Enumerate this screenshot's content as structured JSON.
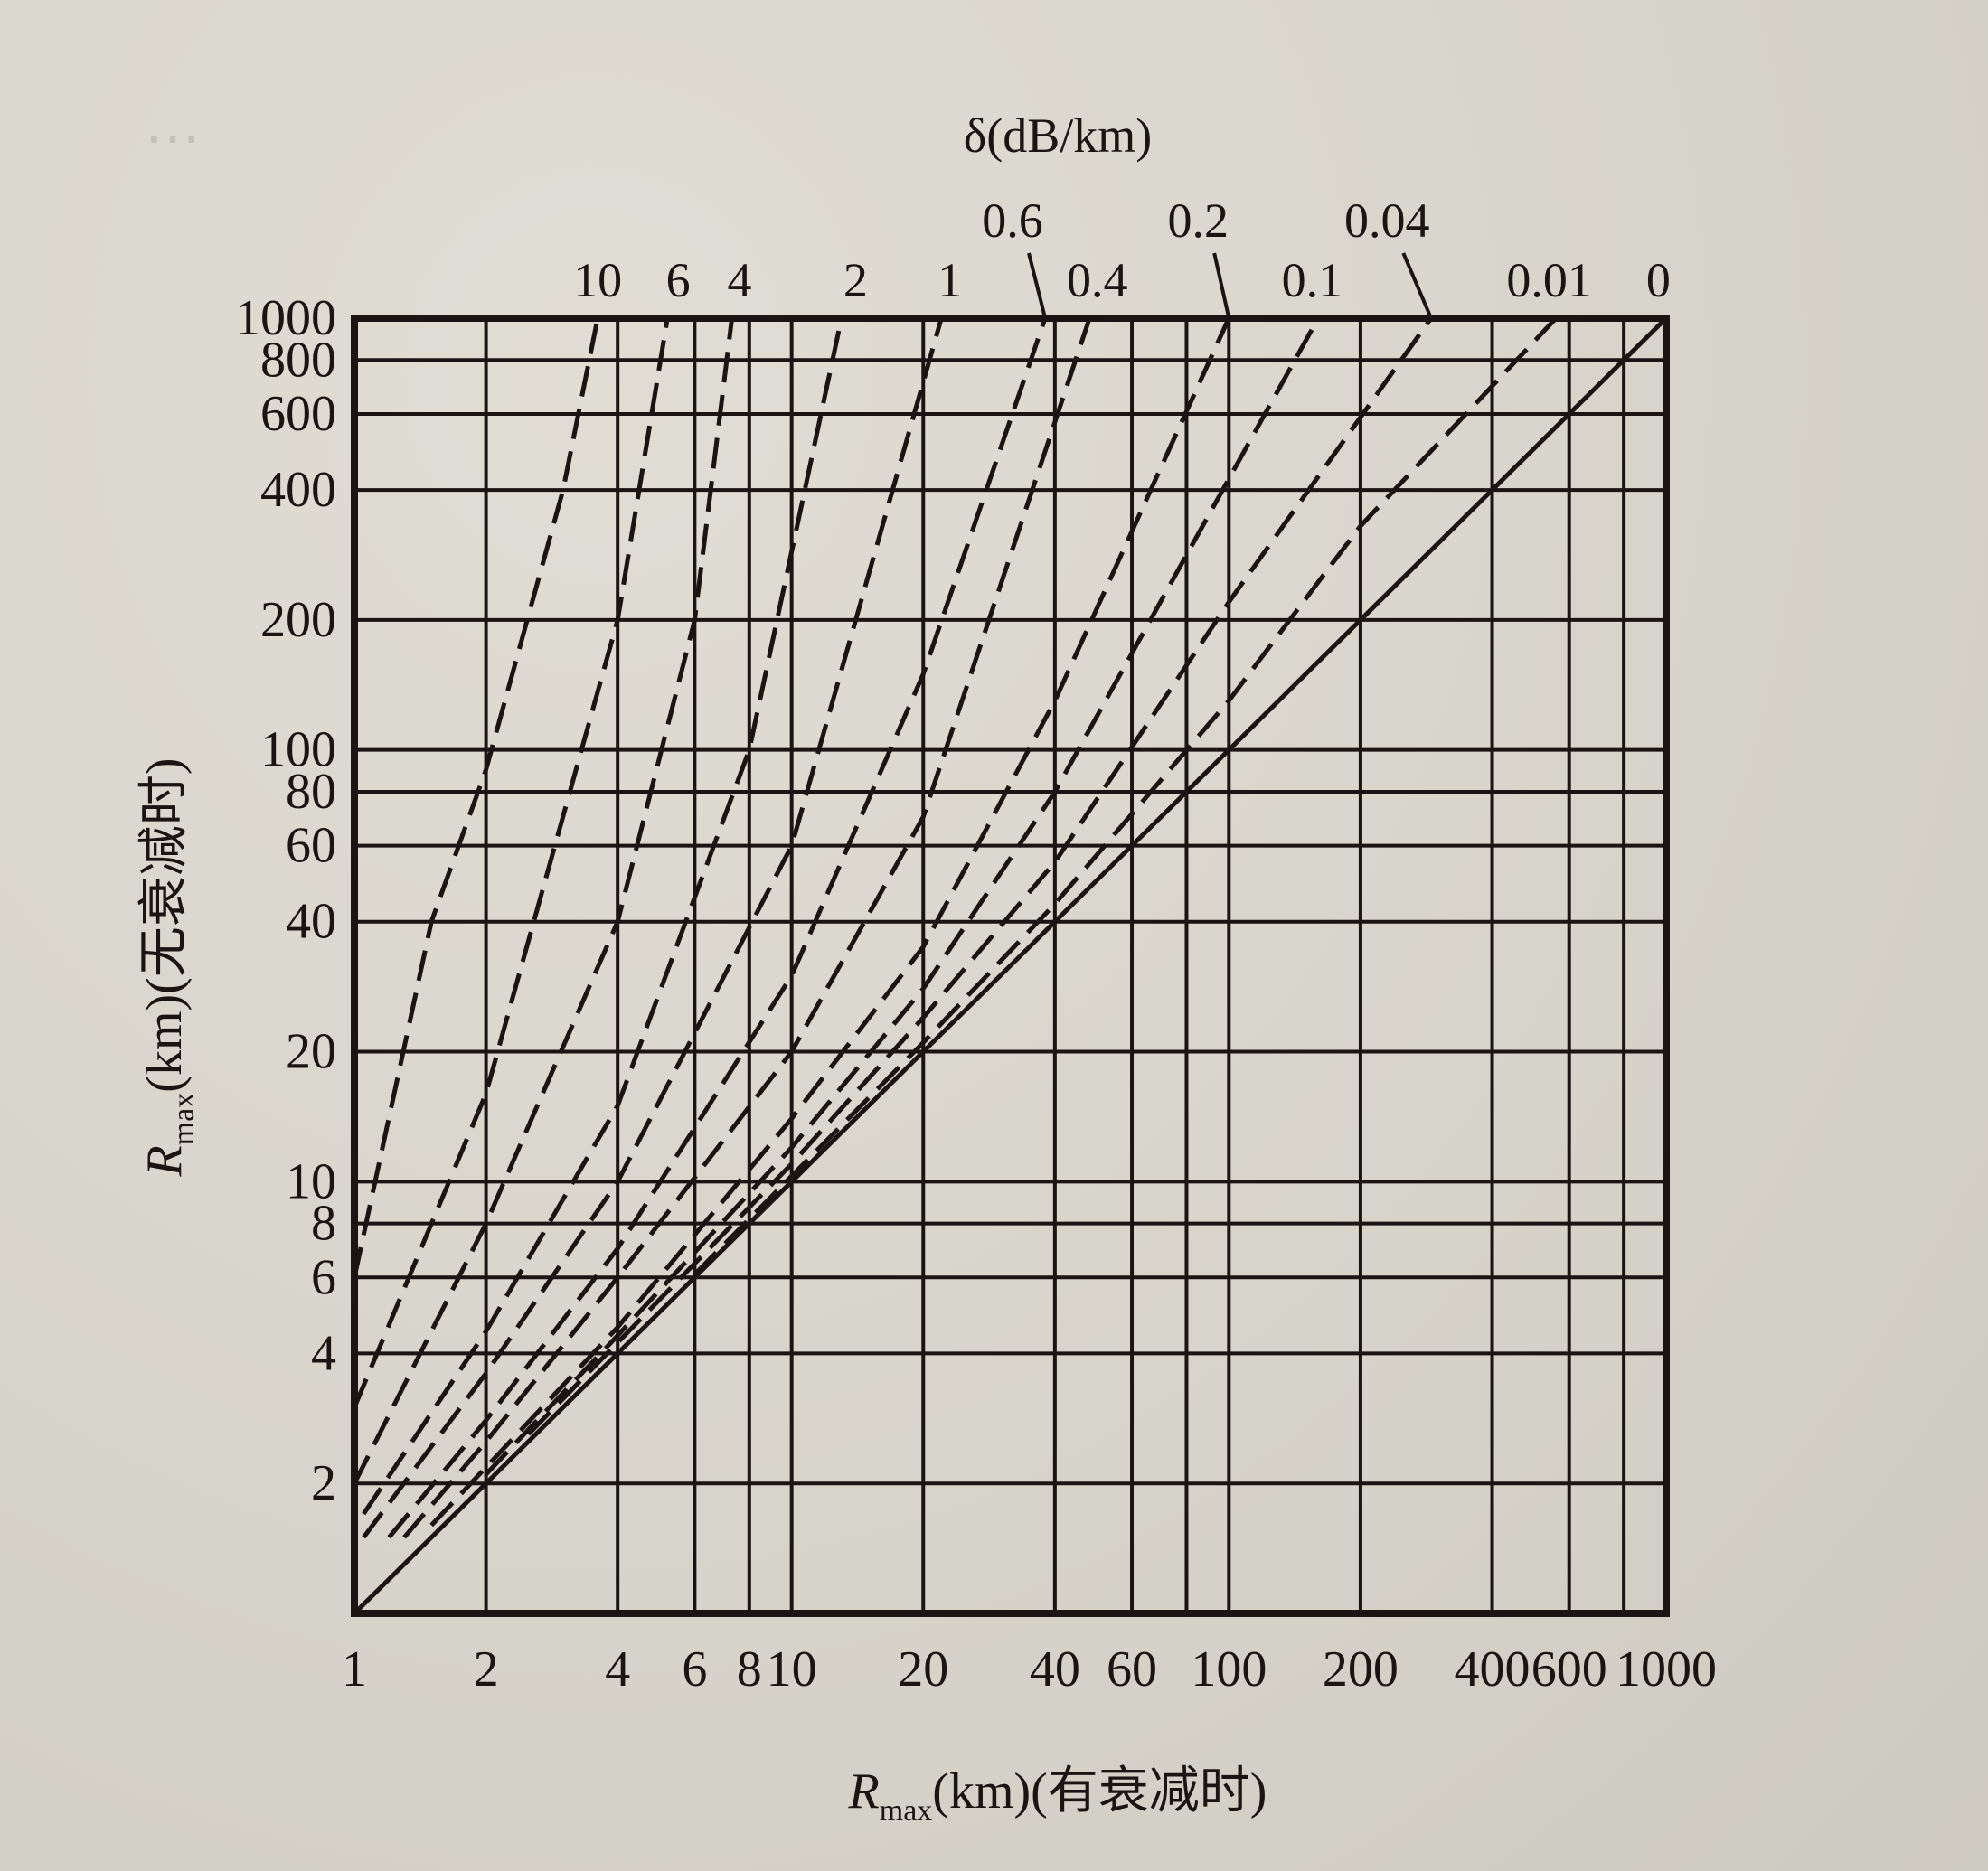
{
  "chart_data": {
    "type": "line",
    "title": "δ(dB/km)",
    "xlabel": "Rmax(km)(有衰减时)",
    "ylabel": "Rmax(km)(无衰减时)",
    "xlabel_parts": {
      "main": "R",
      "sub": "max",
      "rest": "(km)(有衰减时)"
    },
    "ylabel_parts": {
      "main": "R",
      "sub": "max",
      "rest": "(km)(无衰减时)"
    },
    "xscale": "log",
    "yscale": "log",
    "xlim": [
      1,
      1000
    ],
    "ylim": [
      1,
      1000
    ],
    "grid": true,
    "x_grid": [
      1,
      2,
      4,
      6,
      8,
      10,
      20,
      40,
      60,
      80,
      100,
      200,
      400,
      600,
      800,
      1000
    ],
    "y_grid": [
      1,
      2,
      4,
      6,
      8,
      10,
      20,
      40,
      60,
      80,
      100,
      200,
      400,
      600,
      800,
      1000
    ],
    "x_tick_labels": [
      {
        "v": 1,
        "t": "1"
      },
      {
        "v": 2,
        "t": "2"
      },
      {
        "v": 4,
        "t": "4"
      },
      {
        "v": 6,
        "t": "6"
      },
      {
        "v": 8,
        "t": "8"
      },
      {
        "v": 10,
        "t": "10"
      },
      {
        "v": 20,
        "t": "20"
      },
      {
        "v": 40,
        "t": "40"
      },
      {
        "v": 60,
        "t": "60"
      },
      {
        "v": 100,
        "t": "100"
      },
      {
        "v": 200,
        "t": "200"
      },
      {
        "v": 400,
        "t": "400"
      },
      {
        "v": 600,
        "t": "600"
      },
      {
        "v": 1000,
        "t": "1000"
      }
    ],
    "y_tick_labels": [
      {
        "v": 1000,
        "t": "1000"
      },
      {
        "v": 800,
        "t": "800"
      },
      {
        "v": 600,
        "t": "600"
      },
      {
        "v": 400,
        "t": "400"
      },
      {
        "v": 200,
        "t": "200"
      },
      {
        "v": 100,
        "t": "100"
      },
      {
        "v": 80,
        "t": "80"
      },
      {
        "v": 60,
        "t": "60"
      },
      {
        "v": 40,
        "t": "40"
      },
      {
        "v": 20,
        "t": "20"
      },
      {
        "v": 10,
        "t": "10"
      },
      {
        "v": 8,
        "t": "8"
      },
      {
        "v": 6,
        "t": "6"
      },
      {
        "v": 4,
        "t": "4"
      },
      {
        "v": 2,
        "t": "2"
      }
    ],
    "series": [
      {
        "name": "10",
        "delta_db_per_km": 10,
        "style": "dashed",
        "points": [
          [
            1,
            6
          ],
          [
            1.5,
            40
          ],
          [
            2,
            90
          ],
          [
            3,
            400
          ],
          [
            3.6,
            1000
          ]
        ],
        "label_row": 1,
        "label_x": 3.6
      },
      {
        "name": "6",
        "delta_db_per_km": 6,
        "style": "dashed",
        "points": [
          [
            1,
            3
          ],
          [
            2,
            16
          ],
          [
            4,
            200
          ],
          [
            5.2,
            1000
          ]
        ],
        "label_row": 1,
        "label_x": 5.5
      },
      {
        "name": "4",
        "delta_db_per_km": 4,
        "style": "dashed",
        "points": [
          [
            1,
            2
          ],
          [
            2,
            8
          ],
          [
            4,
            40
          ],
          [
            6,
            200
          ],
          [
            7.3,
            1000
          ]
        ],
        "label_row": 1,
        "label_x": 7.6
      },
      {
        "name": "2",
        "delta_db_per_km": 2,
        "style": "dashed",
        "points": [
          [
            1.05,
            1.7
          ],
          [
            2,
            4.5
          ],
          [
            4,
            15
          ],
          [
            8,
            100
          ],
          [
            13,
            1000
          ]
        ],
        "label_row": 1,
        "label_x": 14
      },
      {
        "name": "1",
        "delta_db_per_km": 1,
        "style": "dashed",
        "points": [
          [
            1.05,
            1.5
          ],
          [
            2,
            3.6
          ],
          [
            4,
            10
          ],
          [
            10,
            60
          ],
          [
            22,
            1000
          ]
        ],
        "label_row": 1,
        "label_x": 23
      },
      {
        "name": "0.6",
        "delta_db_per_km": 0.6,
        "style": "dashed",
        "points": [
          [
            1.2,
            1.5
          ],
          [
            2,
            2.8
          ],
          [
            4,
            7
          ],
          [
            10,
            30
          ],
          [
            20,
            150
          ],
          [
            38,
            1000
          ]
        ],
        "label_row": 0,
        "label_x": 32,
        "leader": true
      },
      {
        "name": "0.4",
        "delta_db_per_km": 0.4,
        "style": "dashed",
        "points": [
          [
            1.3,
            1.5
          ],
          [
            2,
            2.5
          ],
          [
            4,
            6
          ],
          [
            10,
            20
          ],
          [
            20,
            70
          ],
          [
            48,
            1000
          ]
        ],
        "label_row": 1,
        "label_x": 50
      },
      {
        "name": "0.2",
        "delta_db_per_km": 0.2,
        "style": "dashed",
        "points": [
          [
            1.5,
            1.6
          ],
          [
            4,
            4.6
          ],
          [
            10,
            14
          ],
          [
            20,
            35
          ],
          [
            40,
            130
          ],
          [
            100,
            1000
          ]
        ],
        "label_row": 0,
        "label_x": 85,
        "leader": true
      },
      {
        "name": "0.1",
        "delta_db_per_km": 0.1,
        "style": "dashed",
        "points": [
          [
            2,
            2.1
          ],
          [
            4,
            4.4
          ],
          [
            10,
            12
          ],
          [
            20,
            28
          ],
          [
            40,
            80
          ],
          [
            160,
            1000
          ]
        ],
        "label_row": 1,
        "label_x": 155
      },
      {
        "name": "0.04",
        "delta_db_per_km": 0.04,
        "style": "dashed",
        "points": [
          [
            2.5,
            2.6
          ],
          [
            10,
            11
          ],
          [
            20,
            24
          ],
          [
            40,
            55
          ],
          [
            100,
            220
          ],
          [
            290,
            1000
          ]
        ],
        "label_row": 0,
        "label_x": 230,
        "leader": true
      },
      {
        "name": "0.01",
        "delta_db_per_km": 0.01,
        "style": "dashed",
        "points": [
          [
            6,
            6.1
          ],
          [
            20,
            21
          ],
          [
            40,
            44
          ],
          [
            100,
            130
          ],
          [
            200,
            330
          ],
          [
            560,
            1000
          ]
        ],
        "label_row": 1,
        "label_x": 540
      },
      {
        "name": "0",
        "delta_db_per_km": 0,
        "style": "solid",
        "points": [
          [
            1,
            1
          ],
          [
            1000,
            1000
          ]
        ],
        "label_row": 1,
        "label_x": 960
      }
    ]
  },
  "page": {
    "background": "#d9d6cd",
    "ink": "#1a1412",
    "bleed_through": "mirrored text from reverse page (not content)"
  }
}
